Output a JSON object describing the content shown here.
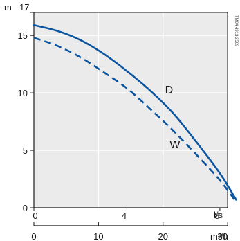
{
  "chart_data": {
    "type": "line",
    "y_unit": "m",
    "y_ticks": [
      0,
      5,
      10,
      15,
      17
    ],
    "ylim": [
      0,
      17
    ],
    "x_unit_top": "l/s",
    "x_ticks_top": [
      0,
      4,
      8
    ],
    "xlim_ls": [
      0,
      8.33
    ],
    "x_unit_bottom": "m³/h",
    "x_ticks_bottom": [
      0,
      10,
      20,
      30
    ],
    "series": [
      {
        "name": "D",
        "style": "solid",
        "x": [
          0,
          1,
          2,
          3,
          4,
          5,
          6,
          7,
          8,
          8.7
        ],
        "y": [
          15.9,
          15.4,
          14.6,
          13.4,
          11.9,
          10.2,
          8.2,
          5.7,
          3.0,
          0.7
        ]
      },
      {
        "name": "W",
        "style": "dashed",
        "x": [
          0,
          1,
          2,
          3,
          4,
          5,
          6,
          7,
          8,
          8.7
        ],
        "y": [
          14.8,
          14.1,
          13.1,
          11.8,
          10.4,
          8.6,
          6.7,
          4.6,
          2.4,
          0.5
        ]
      }
    ],
    "grid": true,
    "side_code": "TM04 4913 2509"
  },
  "colors": {
    "plot_bg": "#ebebeb",
    "grid": "#ffffff",
    "curve": "#0b55a0",
    "axis": "#1a1a1a"
  }
}
